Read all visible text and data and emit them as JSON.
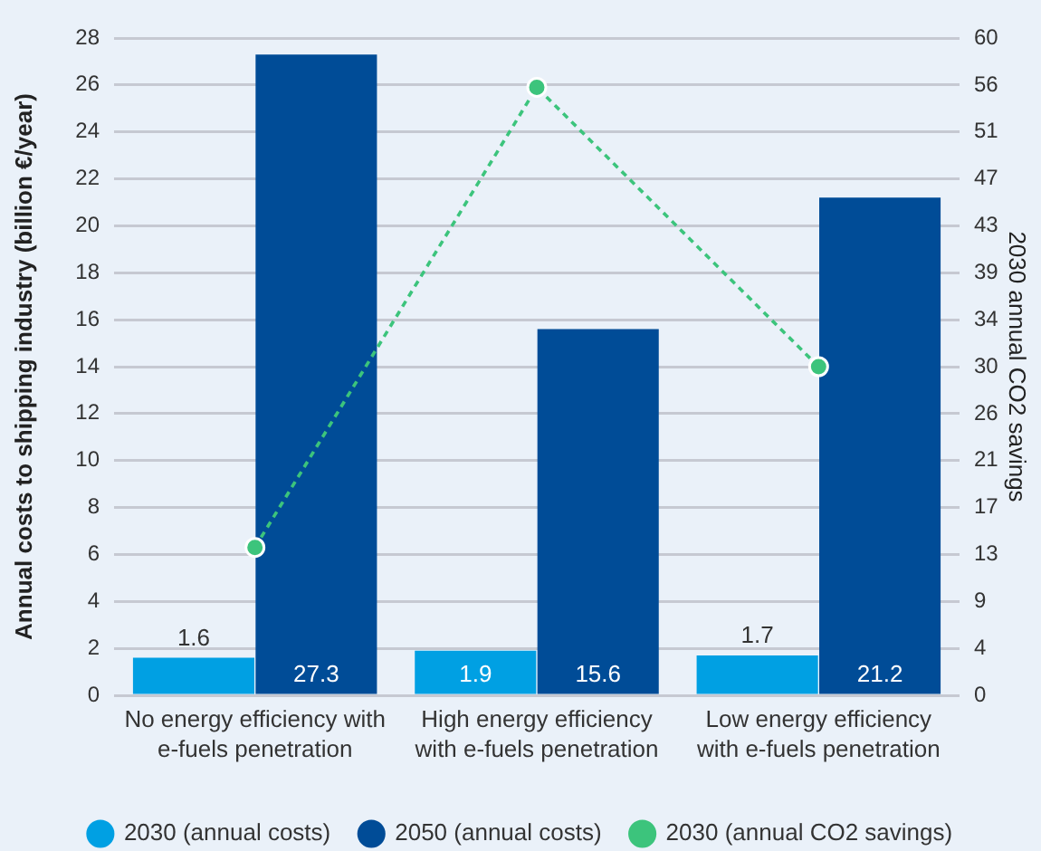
{
  "chart_data": {
    "type": "bar",
    "categories": [
      "No energy efficiency with e-fuels penetration",
      "High energy efficiency with e-fuels penetration",
      "Low energy efficiency with e-fuels penetration"
    ],
    "ylabel": "Annual costs to shipping industry (billion €/year)",
    "y2label": "2030 annual CO2 savings",
    "ylim": [
      0,
      28
    ],
    "yticks": [
      0,
      2,
      4,
      6,
      8,
      10,
      12,
      14,
      16,
      18,
      20,
      22,
      24,
      26,
      28
    ],
    "y2lim": [
      0,
      60
    ],
    "y2ticks": [
      0,
      {
        "value": 4.29,
        "label": "4"
      },
      {
        "value": 8.57,
        "label": "9"
      },
      {
        "value": 12.86,
        "label": "13"
      },
      {
        "value": 17.14,
        "label": "17"
      },
      {
        "value": 21.43,
        "label": "21"
      },
      {
        "value": 25.71,
        "label": "26"
      },
      30,
      {
        "value": 34.29,
        "label": "34"
      },
      {
        "value": 38.57,
        "label": "39"
      },
      {
        "value": 42.86,
        "label": "43"
      },
      {
        "value": 47.14,
        "label": "47"
      },
      {
        "value": 51.43,
        "label": "51"
      },
      {
        "value": 55.71,
        "label": "56"
      },
      60
    ],
    "series": [
      {
        "name": "2030 (annual costs)",
        "color": "#00a0e3",
        "values": [
          1.6,
          1.9,
          1.7
        ],
        "value_labels": [
          "1.6",
          "1.9",
          "1.7"
        ]
      },
      {
        "name": "2050 (annual costs)",
        "color": "#004c97",
        "values": [
          27.3,
          15.6,
          21.2
        ],
        "value_labels": [
          "27.3",
          "15.6",
          "21.2"
        ]
      },
      {
        "name": "2030 (annual CO2 savings)",
        "type": "line",
        "axis": "y2",
        "color": "#3cc47c",
        "values": [
          13.5,
          55.5,
          30
        ],
        "marker": "circle",
        "line_style": "dashed"
      }
    ],
    "grid": "y",
    "legend": "bottom"
  }
}
